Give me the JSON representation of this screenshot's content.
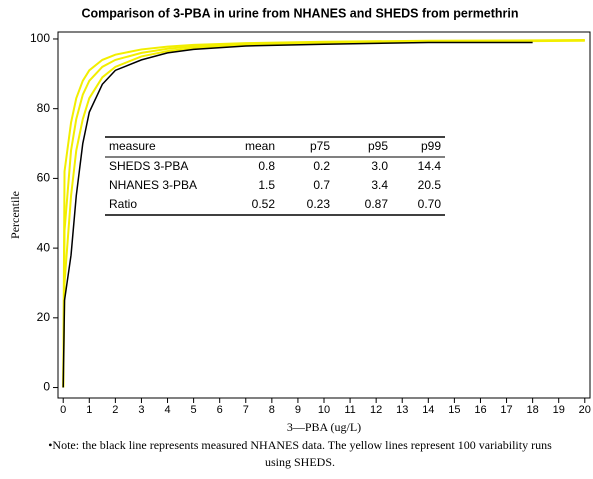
{
  "chart_data": {
    "type": "line",
    "title": "Comparison of 3-PBA in urine from NHANES and SHEDS from permethrin",
    "xlabel": "3—PBA (ug/L)",
    "ylabel": "Percentile",
    "x": [
      0,
      0.05,
      0.3,
      0.5,
      0.75,
      1,
      1.5,
      2,
      3,
      4,
      5,
      7,
      10,
      14,
      18,
      20
    ],
    "series": [
      {
        "color": "#f2ee00",
        "values": [
          0,
          62,
          76,
          83,
          88,
          91,
          94,
          95.5,
          97,
          97.8,
          98.3,
          98.8,
          99.2,
          99.5,
          99.6,
          99.7
        ]
      },
      {
        "color": "#f2ee00",
        "values": [
          0,
          45,
          68,
          77,
          84,
          88,
          92,
          94,
          96,
          97.2,
          97.9,
          98.5,
          99,
          99.3,
          99.5,
          99.6
        ]
      },
      {
        "color": "#f2ee00",
        "values": [
          0,
          30,
          55,
          68,
          77,
          83,
          89,
          92,
          95,
          96.5,
          97.4,
          98.2,
          98.8,
          99.2,
          99.4,
          99.5
        ]
      },
      {
        "color": "#000000",
        "values": [
          0,
          25,
          38,
          55,
          70,
          79,
          87,
          91,
          94,
          96,
          97,
          98,
          98.5,
          99,
          99,
          null
        ]
      }
    ],
    "xlim": [
      -0.2,
      20.2
    ],
    "xticks": [
      0,
      1,
      2,
      3,
      4,
      5,
      6,
      7,
      8,
      9,
      10,
      11,
      12,
      13,
      14,
      15,
      16,
      17,
      18,
      19,
      20
    ],
    "ylim": [
      -3,
      102
    ],
    "yticks": [
      0,
      20,
      40,
      60,
      80,
      100
    ],
    "table": {
      "columns": [
        "measure",
        "mean",
        "p75",
        "p95",
        "p99"
      ],
      "rows": [
        [
          "SHEDS 3-PBA",
          "0.8",
          "0.2",
          "3.0",
          "14.4"
        ],
        [
          "NHANES 3-PBA",
          "1.5",
          "0.7",
          "3.4",
          "20.5"
        ],
        [
          "Ratio",
          "0.52",
          "0.23",
          "0.87",
          "0.70"
        ]
      ]
    },
    "note": "•Note: the black line represents measured NHANES data. The yellow lines represent 100 variability runs using SHEDS."
  }
}
